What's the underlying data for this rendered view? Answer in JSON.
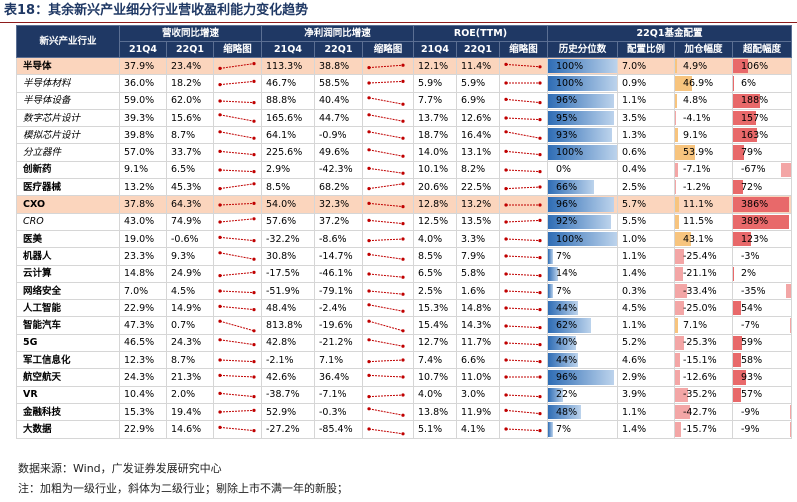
{
  "title": "表18：其余新兴产业细分行业营收盈利能力变化趋势",
  "groups": {
    "industry": "新兴产业行业",
    "rev": "营收同比增速",
    "np": "净利润同比增速",
    "roe": "ROE(TTM)",
    "fund": "22Q1基金配置"
  },
  "subheaders": {
    "q4": "21Q4",
    "q1": "22Q1",
    "spark": "缩略图",
    "hist": "历史分位数",
    "alloc": "配置比例",
    "add": "加仓幅度",
    "over": "超配幅度"
  },
  "rows": [
    {
      "name": "半导体",
      "level": 1,
      "hl": true,
      "rev": [
        "37.9%",
        "23.4%"
      ],
      "np": [
        "113.3%",
        "38.8%"
      ],
      "roe": [
        "12.1%",
        "11.4%"
      ],
      "hist": "100%",
      "hist_v": 100,
      "alloc": "7.0%",
      "add": "4.9%",
      "add_v": 4.9,
      "over": "106%",
      "over_v": 106,
      "spark": [
        [
          0.65,
          0.35
        ],
        [
          0.6,
          0.45
        ],
        [
          0.4,
          0.55
        ]
      ]
    },
    {
      "name": "半导体材料",
      "level": 2,
      "hl": false,
      "rev": [
        "36.0%",
        "18.2%"
      ],
      "np": [
        "46.7%",
        "58.5%"
      ],
      "roe": [
        "5.9%",
        "5.9%"
      ],
      "hist": "100%",
      "hist_v": 100,
      "alloc": "0.9%",
      "add": "46.9%",
      "add_v": 46.9,
      "over": "6%",
      "over_v": 6,
      "spark": [
        [
          0.6,
          0.4
        ],
        [
          0.5,
          0.4
        ],
        [
          0.5,
          0.5
        ]
      ]
    },
    {
      "name": "半导体设备",
      "level": 2,
      "hl": false,
      "rev": [
        "59.0%",
        "62.0%"
      ],
      "np": [
        "88.8%",
        "40.4%"
      ],
      "roe": [
        "7.7%",
        "6.9%"
      ],
      "hist": "96%",
      "hist_v": 96,
      "alloc": "1.1%",
      "add": "4.8%",
      "add_v": 4.8,
      "over": "188%",
      "over_v": 188,
      "spark": [
        [
          0.5,
          0.6
        ],
        [
          0.3,
          0.7
        ],
        [
          0.4,
          0.6
        ]
      ]
    },
    {
      "name": "数字芯片设计",
      "level": 2,
      "hl": false,
      "rev": [
        "39.3%",
        "15.6%"
      ],
      "np": [
        "165.6%",
        "44.7%"
      ],
      "roe": [
        "13.7%",
        "12.6%"
      ],
      "hist": "95%",
      "hist_v": 95,
      "alloc": "3.5%",
      "add": "-4.1%",
      "add_v": -4.1,
      "over": "157%",
      "over_v": 157,
      "spark": [
        [
          0.3,
          0.7
        ],
        [
          0.3,
          0.7
        ],
        [
          0.5,
          0.6
        ]
      ]
    },
    {
      "name": "模拟芯片设计",
      "level": 2,
      "hl": false,
      "rev": [
        "39.8%",
        "8.7%"
      ],
      "np": [
        "64.1%",
        "-0.9%"
      ],
      "roe": [
        "18.7%",
        "16.4%"
      ],
      "hist": "93%",
      "hist_v": 93,
      "alloc": "1.3%",
      "add": "9.1%",
      "add_v": 9.1,
      "over": "163%",
      "over_v": 163,
      "spark": [
        [
          0.3,
          0.7
        ],
        [
          0.3,
          0.7
        ],
        [
          0.3,
          0.7
        ]
      ]
    },
    {
      "name": "分立器件",
      "level": 2,
      "hl": false,
      "rev": [
        "57.0%",
        "33.7%"
      ],
      "np": [
        "225.6%",
        "49.6%"
      ],
      "roe": [
        "14.0%",
        "13.1%"
      ],
      "hist": "100%",
      "hist_v": 100,
      "alloc": "0.6%",
      "add": "53.9%",
      "add_v": 53.9,
      "over": "79%",
      "over_v": 79,
      "spark": [
        [
          0.4,
          0.6
        ],
        [
          0.3,
          0.7
        ],
        [
          0.4,
          0.6
        ]
      ]
    },
    {
      "name": "创新药",
      "level": 1,
      "hl": false,
      "rev": [
        "9.1%",
        "6.5%"
      ],
      "np": [
        "2.9%",
        "-42.3%"
      ],
      "roe": [
        "10.1%",
        "8.2%"
      ],
      "hist": "0%",
      "hist_v": 0,
      "alloc": "0.4%",
      "add": "-7.1%",
      "add_v": -7.1,
      "over": "-67%",
      "over_v": -67,
      "spark": [
        [
          0.5,
          0.6
        ],
        [
          0.4,
          0.7
        ],
        [
          0.5,
          0.6
        ]
      ]
    },
    {
      "name": "医疗器械",
      "level": 1,
      "hl": false,
      "rev": [
        "13.2%",
        "45.3%"
      ],
      "np": [
        "8.5%",
        "68.2%"
      ],
      "roe": [
        "20.6%",
        "22.5%"
      ],
      "hist": "66%",
      "hist_v": 66,
      "alloc": "2.5%",
      "add": "-1.2%",
      "add_v": -1.2,
      "over": "72%",
      "over_v": 72,
      "spark": [
        [
          0.6,
          0.3
        ],
        [
          0.6,
          0.3
        ],
        [
          0.6,
          0.5
        ]
      ]
    },
    {
      "name": "CXO",
      "level": 1,
      "hl": true,
      "rev": [
        "37.8%",
        "64.3%"
      ],
      "np": [
        "54.0%",
        "32.3%"
      ],
      "roe": [
        "12.8%",
        "13.2%"
      ],
      "hist": "96%",
      "hist_v": 96,
      "alloc": "5.7%",
      "add": "11.1%",
      "add_v": 11.1,
      "over": "386%",
      "over_v": 386,
      "spark": [
        [
          0.5,
          0.4
        ],
        [
          0.4,
          0.6
        ],
        [
          0.5,
          0.5
        ]
      ]
    },
    {
      "name": "CRO",
      "level": 2,
      "hl": false,
      "rev": [
        "43.0%",
        "74.9%"
      ],
      "np": [
        "57.6%",
        "37.2%"
      ],
      "roe": [
        "12.5%",
        "13.5%"
      ],
      "hist": "92%",
      "hist_v": 92,
      "alloc": "5.5%",
      "add": "11.5%",
      "add_v": 11.5,
      "over": "389%",
      "over_v": 389,
      "spark": [
        [
          0.5,
          0.3
        ],
        [
          0.4,
          0.6
        ],
        [
          0.5,
          0.4
        ]
      ]
    },
    {
      "name": "医美",
      "level": 1,
      "hl": false,
      "rev": [
        "19.0%",
        "-0.6%"
      ],
      "np": [
        "-32.2%",
        "-8.6%"
      ],
      "roe": [
        "4.0%",
        "3.3%"
      ],
      "hist": "100%",
      "hist_v": 100,
      "alloc": "1.0%",
      "add": "43.1%",
      "add_v": 43.1,
      "over": "123%",
      "over_v": 123,
      "spark": [
        [
          0.4,
          0.6
        ],
        [
          0.6,
          0.5
        ],
        [
          0.5,
          0.6
        ]
      ]
    },
    {
      "name": "机器人",
      "level": 1,
      "hl": false,
      "rev": [
        "23.3%",
        "9.3%"
      ],
      "np": [
        "30.8%",
        "-14.7%"
      ],
      "roe": [
        "8.5%",
        "7.9%"
      ],
      "hist": "7%",
      "hist_v": 7,
      "alloc": "1.1%",
      "add": "-25.4%",
      "add_v": -25.4,
      "over": "-3%",
      "over_v": -3,
      "spark": [
        [
          0.3,
          0.7
        ],
        [
          0.4,
          0.7
        ],
        [
          0.5,
          0.6
        ]
      ]
    },
    {
      "name": "云计算",
      "level": 1,
      "hl": false,
      "rev": [
        "14.8%",
        "24.9%"
      ],
      "np": [
        "-17.5%",
        "-46.1%"
      ],
      "roe": [
        "6.5%",
        "5.8%"
      ],
      "hist": "14%",
      "hist_v": 14,
      "alloc": "1.4%",
      "add": "-21.1%",
      "add_v": -21.1,
      "over": "2%",
      "over_v": 2,
      "spark": [
        [
          0.6,
          0.4
        ],
        [
          0.5,
          0.7
        ],
        [
          0.5,
          0.6
        ]
      ]
    },
    {
      "name": "网络安全",
      "level": 1,
      "hl": false,
      "rev": [
        "7.0%",
        "4.5%"
      ],
      "np": [
        "-51.9%",
        "-79.1%"
      ],
      "roe": [
        "2.5%",
        "1.6%"
      ],
      "hist": "7%",
      "hist_v": 7,
      "alloc": "0.3%",
      "add": "-33.4%",
      "add_v": -33.4,
      "over": "-35%",
      "over_v": -35,
      "spark": [
        [
          0.5,
          0.6
        ],
        [
          0.5,
          0.7
        ],
        [
          0.5,
          0.6
        ]
      ]
    },
    {
      "name": "人工智能",
      "level": 1,
      "hl": false,
      "rev": [
        "22.9%",
        "14.9%"
      ],
      "np": [
        "48.4%",
        "-2.4%"
      ],
      "roe": [
        "15.3%",
        "14.8%"
      ],
      "hist": "44%",
      "hist_v": 44,
      "alloc": "4.5%",
      "add": "-25.0%",
      "add_v": -25.0,
      "over": "54%",
      "over_v": 54,
      "spark": [
        [
          0.4,
          0.6
        ],
        [
          0.3,
          0.7
        ],
        [
          0.5,
          0.6
        ]
      ]
    },
    {
      "name": "智能汽车",
      "level": 1,
      "hl": false,
      "rev": [
        "47.3%",
        "0.7%"
      ],
      "np": [
        "813.8%",
        "-19.6%"
      ],
      "roe": [
        "15.4%",
        "14.3%"
      ],
      "hist": "62%",
      "hist_v": 62,
      "alloc": "1.1%",
      "add": "7.1%",
      "add_v": 7.1,
      "over": "-7%",
      "over_v": -7,
      "spark": [
        [
          0.2,
          0.8
        ],
        [
          0.2,
          0.8
        ],
        [
          0.5,
          0.6
        ]
      ]
    },
    {
      "name": "5G",
      "level": 1,
      "hl": false,
      "rev": [
        "46.5%",
        "24.3%"
      ],
      "np": [
        "42.8%",
        "-21.2%"
      ],
      "roe": [
        "12.7%",
        "11.7%"
      ],
      "hist": "40%",
      "hist_v": 40,
      "alloc": "5.2%",
      "add": "-25.3%",
      "add_v": -25.3,
      "over": "59%",
      "over_v": 59,
      "spark": [
        [
          0.3,
          0.6
        ],
        [
          0.3,
          0.7
        ],
        [
          0.5,
          0.6
        ]
      ]
    },
    {
      "name": "军工信息化",
      "level": 1,
      "hl": false,
      "rev": [
        "12.3%",
        "8.7%"
      ],
      "np": [
        "-2.1%",
        "7.1%"
      ],
      "roe": [
        "7.4%",
        "6.6%"
      ],
      "hist": "44%",
      "hist_v": 44,
      "alloc": "4.6%",
      "add": "-15.1%",
      "add_v": -15.1,
      "over": "58%",
      "over_v": 58,
      "spark": [
        [
          0.5,
          0.6
        ],
        [
          0.6,
          0.5
        ],
        [
          0.5,
          0.6
        ]
      ]
    },
    {
      "name": "航空航天",
      "level": 1,
      "hl": false,
      "rev": [
        "24.3%",
        "21.3%"
      ],
      "np": [
        "42.6%",
        "36.4%"
      ],
      "roe": [
        "10.7%",
        "11.0%"
      ],
      "hist": "96%",
      "hist_v": 96,
      "alloc": "2.9%",
      "add": "-12.6%",
      "add_v": -12.6,
      "over": "93%",
      "over_v": 93,
      "spark": [
        [
          0.4,
          0.5
        ],
        [
          0.4,
          0.5
        ],
        [
          0.5,
          0.5
        ]
      ]
    },
    {
      "name": "VR",
      "level": 1,
      "hl": false,
      "rev": [
        "10.4%",
        "2.0%"
      ],
      "np": [
        "-38.7%",
        "-7.1%"
      ],
      "roe": [
        "4.0%",
        "3.0%"
      ],
      "hist": "22%",
      "hist_v": 22,
      "alloc": "3.9%",
      "add": "-35.2%",
      "add_v": -35.2,
      "over": "57%",
      "over_v": 57,
      "spark": [
        [
          0.4,
          0.6
        ],
        [
          0.6,
          0.5
        ],
        [
          0.5,
          0.6
        ]
      ]
    },
    {
      "name": "金融科技",
      "level": 1,
      "hl": false,
      "rev": [
        "15.3%",
        "19.4%"
      ],
      "np": [
        "52.9%",
        "-0.3%"
      ],
      "roe": [
        "13.8%",
        "11.9%"
      ],
      "hist": "48%",
      "hist_v": 48,
      "alloc": "1.1%",
      "add": "-42.7%",
      "add_v": -42.7,
      "over": "-9%",
      "over_v": -9,
      "spark": [
        [
          0.5,
          0.4
        ],
        [
          0.3,
          0.7
        ],
        [
          0.4,
          0.6
        ]
      ]
    },
    {
      "name": "大数据",
      "level": 1,
      "hl": false,
      "rev": [
        "22.9%",
        "14.6%"
      ],
      "np": [
        "-27.2%",
        "-85.4%"
      ],
      "roe": [
        "5.1%",
        "4.1%"
      ],
      "hist": "7%",
      "hist_v": 7,
      "alloc": "1.4%",
      "add": "-15.7%",
      "add_v": -15.7,
      "over": "-9%",
      "over_v": -9,
      "spark": [
        [
          0.4,
          0.6
        ],
        [
          0.5,
          0.8
        ],
        [
          0.5,
          0.6
        ]
      ]
    }
  ],
  "footer": {
    "source": "数据来源：Wind，广发证券发展研究中心",
    "note": "注：加粗为一级行业，斜体为二级行业；剔除上市不满一年的新股；"
  }
}
